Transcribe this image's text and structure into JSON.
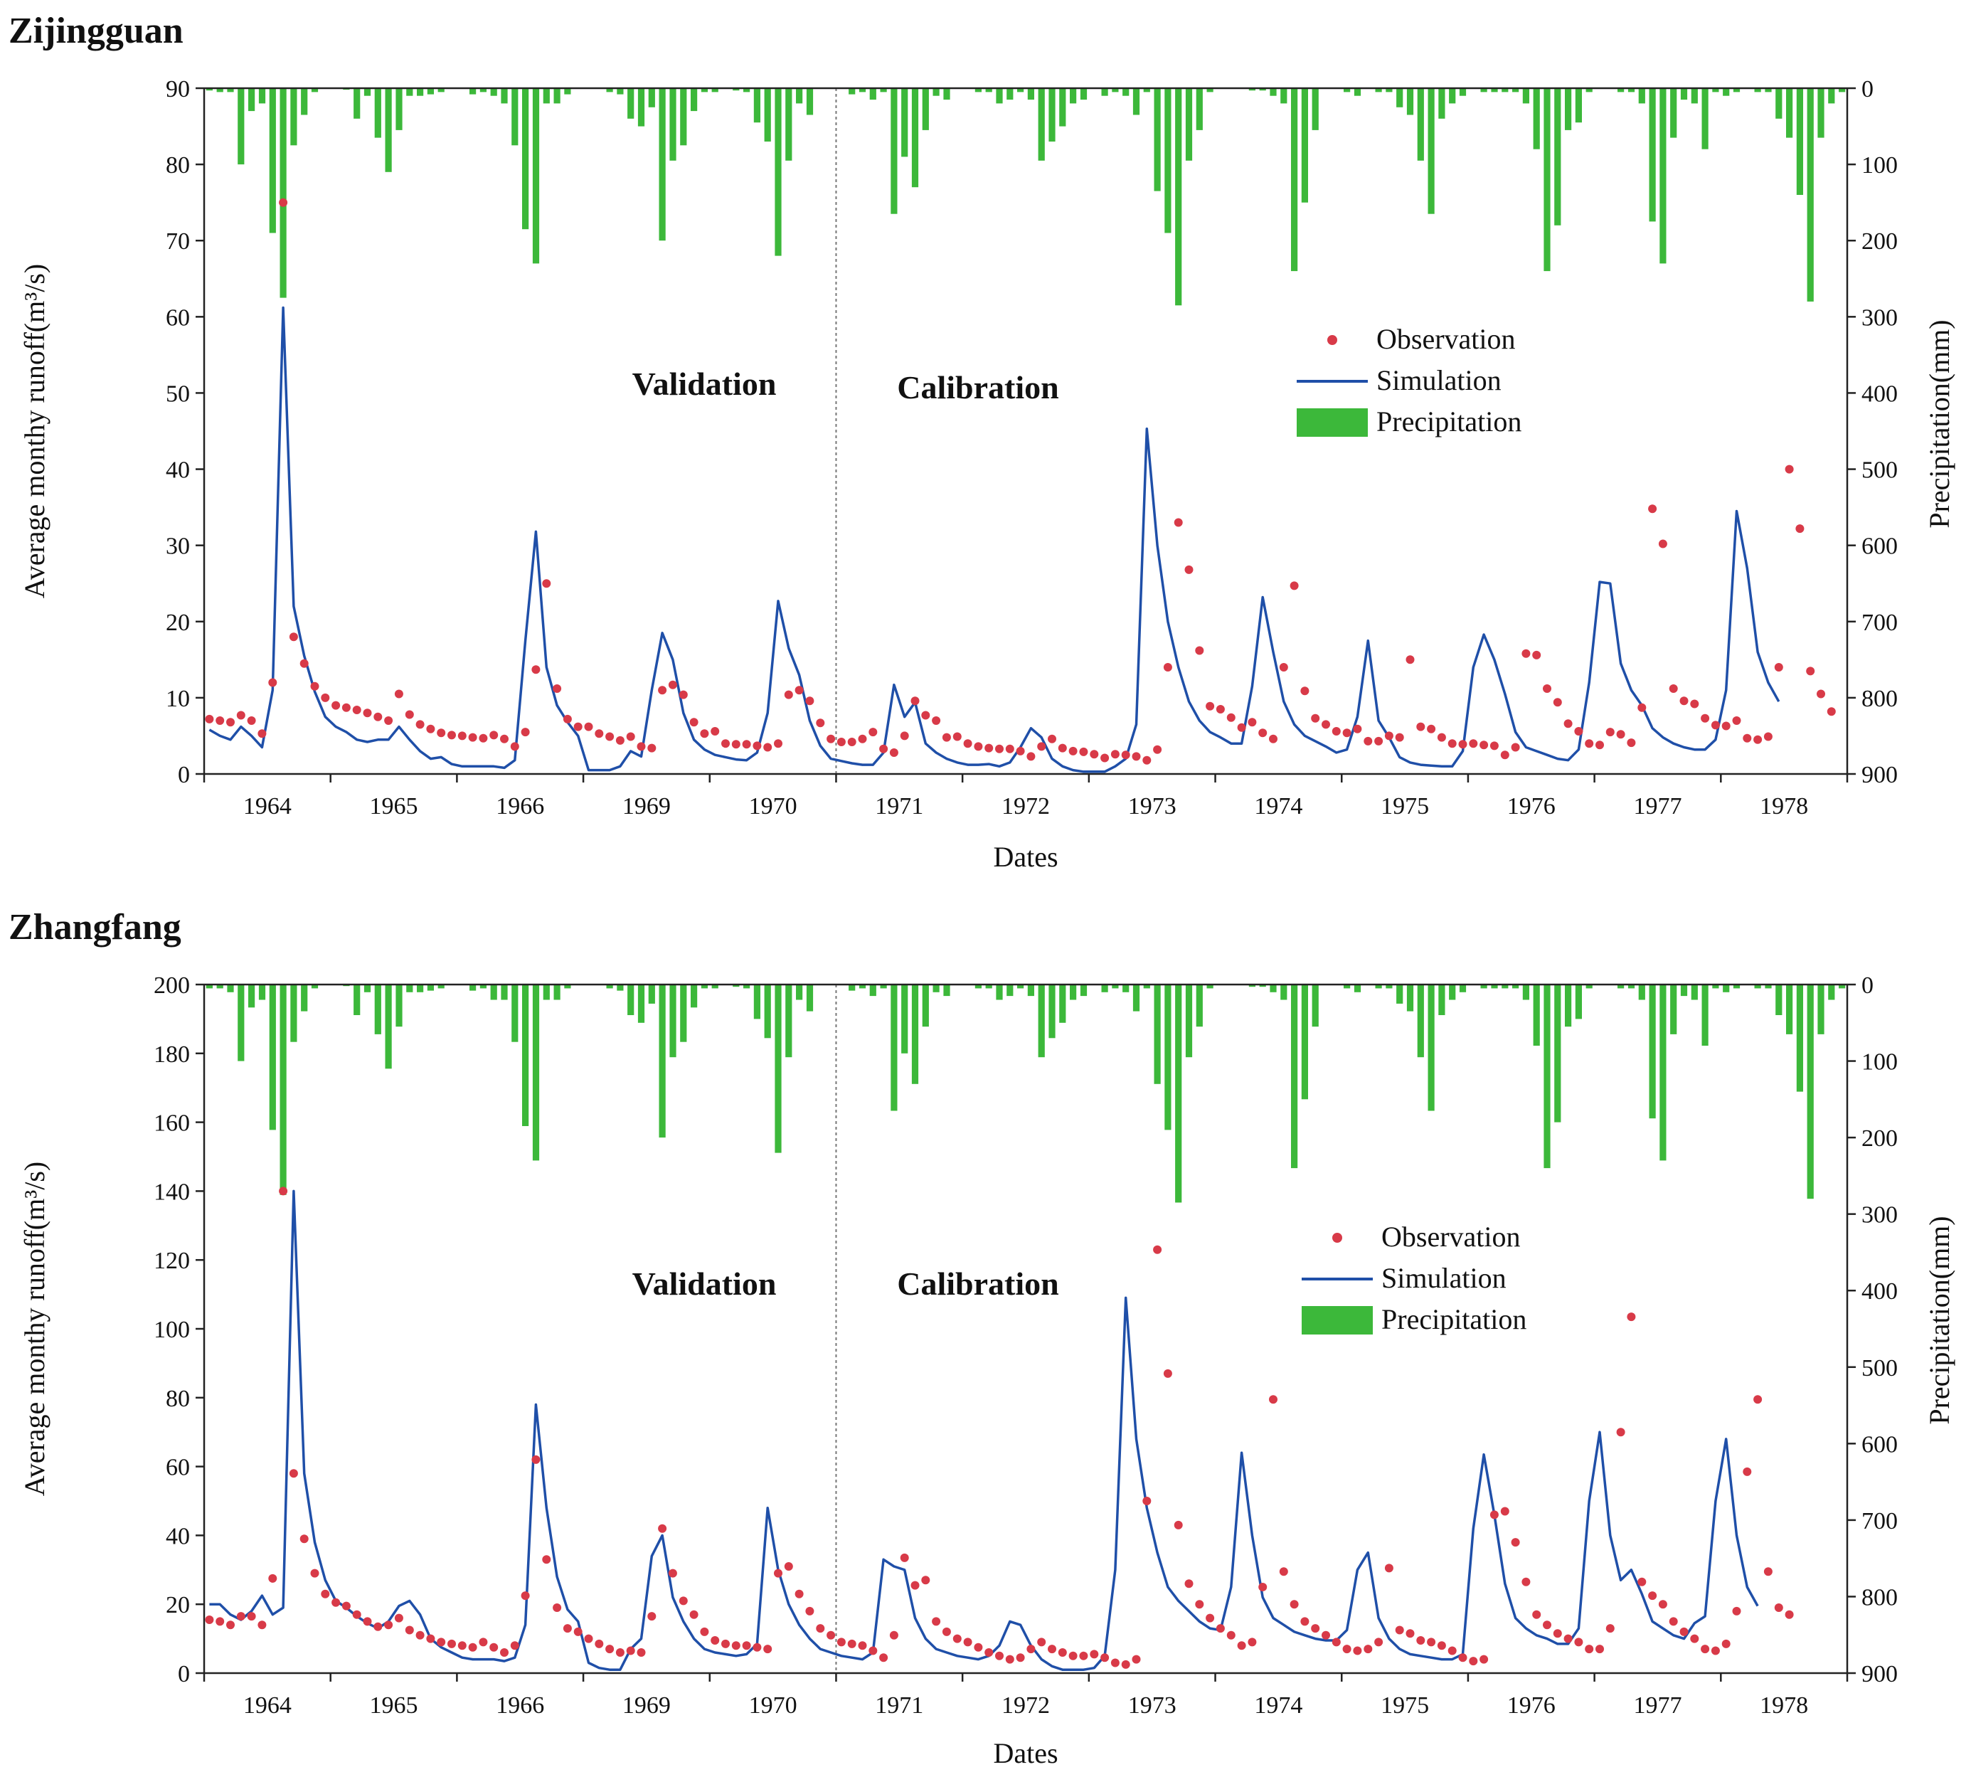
{
  "colors": {
    "observation": "#d83a48",
    "simulation": "#1f4fa8",
    "precipitation": "#3cb83a",
    "axis": "#222222",
    "divider": "#777777"
  },
  "chart_data": [
    {
      "type": "combo",
      "title": "Zijingguan",
      "xlabel": "Dates",
      "ylabel_left": "Average monthy runoff(m³/s)",
      "ylabel_right": "Precipitation(mm)",
      "ylim_left": [
        0,
        90
      ],
      "yticks_left": [
        0,
        10,
        20,
        30,
        40,
        50,
        60,
        70,
        80,
        90
      ],
      "ylim_right_inverted": [
        0,
        900
      ],
      "yticks_right": [
        0,
        100,
        200,
        300,
        400,
        500,
        600,
        700,
        800,
        900
      ],
      "x_tick_labels": [
        "1964",
        "1965",
        "1966",
        "1969",
        "1970",
        "1971",
        "1972",
        "1973",
        "1974",
        "1975",
        "1976",
        "1977",
        "1978"
      ],
      "months_per_year": 12,
      "split_after_year_index": 4,
      "section_labels": {
        "left": "Validation",
        "right": "Calibration"
      },
      "legend": {
        "observation": "Observation",
        "simulation": "Simulation",
        "precipitation": "Precipitation"
      },
      "series": [
        {
          "name": "Observation",
          "type": "scatter",
          "values": [
            7.2,
            7.0,
            6.8,
            7.7,
            7.0,
            5.3,
            12.0,
            75.0,
            18.0,
            14.5,
            11.5,
            10.0,
            9.0,
            8.7,
            8.4,
            8.0,
            7.5,
            7.0,
            10.5,
            7.8,
            6.5,
            5.9,
            5.4,
            5.1,
            5.0,
            4.8,
            4.7,
            5.1,
            4.6,
            3.6,
            5.5,
            13.7,
            25.0,
            11.2,
            7.2,
            6.2,
            6.2,
            5.3,
            4.9,
            4.4,
            4.9,
            3.6,
            3.4,
            11.0,
            11.7,
            10.4,
            6.8,
            5.3,
            5.6,
            4.0,
            3.9,
            3.9,
            3.7,
            3.5,
            4.0,
            10.4,
            11.0,
            9.6,
            6.7,
            4.6,
            4.2,
            4.2,
            4.6,
            5.5,
            3.3,
            2.8,
            5.0,
            9.6,
            7.7,
            7.0,
            4.8,
            4.9,
            4.0,
            3.6,
            3.4,
            3.3,
            3.3,
            3.0,
            2.3,
            3.6,
            4.6,
            3.4,
            3.0,
            2.9,
            2.6,
            2.1,
            2.6,
            2.5,
            2.3,
            1.8,
            3.2,
            14.0,
            33.0,
            26.8,
            16.2,
            8.9,
            8.5,
            7.4,
            6.1,
            6.8,
            5.4,
            4.6,
            14.0,
            24.7,
            10.9,
            7.3,
            6.5,
            5.6,
            5.4,
            5.9,
            4.3,
            4.3,
            5.0,
            4.8,
            15.0,
            6.2,
            5.9,
            4.8,
            4.0,
            3.9,
            4.0,
            3.8,
            3.7,
            2.5,
            3.5,
            15.8,
            15.6,
            11.2,
            9.4,
            6.6,
            5.6,
            4.0,
            3.8,
            5.5,
            5.2,
            4.1,
            8.7,
            34.8,
            30.2,
            11.2,
            9.6,
            9.2,
            7.3,
            6.4,
            6.3,
            7.0,
            4.7,
            4.5,
            4.9,
            14.0,
            40.0,
            32.2,
            13.5,
            10.5,
            8.2
          ]
        },
        {
          "name": "Simulation",
          "type": "line",
          "values": [
            5.8,
            5.0,
            4.5,
            6.2,
            5.0,
            3.5,
            11.0,
            61.2,
            22.0,
            15.5,
            10.8,
            7.5,
            6.2,
            5.5,
            4.5,
            4.2,
            4.5,
            4.5,
            6.2,
            4.5,
            3.0,
            2.0,
            2.2,
            1.3,
            1.0,
            1.0,
            1.0,
            1.0,
            0.8,
            1.8,
            17.5,
            31.8,
            14.0,
            9.0,
            6.8,
            5.0,
            0.5,
            0.5,
            0.5,
            1.0,
            3.0,
            2.3,
            11.0,
            18.5,
            15.0,
            8.0,
            4.5,
            3.2,
            2.5,
            2.2,
            1.9,
            1.8,
            2.8,
            8.0,
            22.7,
            16.5,
            13.0,
            7.0,
            3.7,
            2.0,
            1.7,
            1.4,
            1.2,
            1.2,
            2.8,
            11.7,
            7.5,
            9.4,
            4.0,
            2.8,
            2.0,
            1.5,
            1.2,
            1.2,
            1.3,
            1.0,
            1.5,
            3.5,
            6.0,
            4.8,
            2.0,
            1.0,
            0.5,
            0.3,
            0.3,
            0.3,
            1.0,
            2.0,
            6.5,
            45.3,
            30.0,
            20.0,
            14.0,
            9.5,
            7.0,
            5.5,
            4.8,
            4.0,
            4.0,
            11.5,
            23.2,
            16.0,
            9.5,
            6.5,
            5.0,
            4.3,
            3.6,
            2.8,
            3.2,
            7.5,
            17.5,
            7.0,
            4.8,
            2.2,
            1.5,
            1.2,
            1.1,
            1.0,
            1.0,
            3.0,
            14.0,
            18.3,
            15.0,
            10.5,
            5.5,
            3.5,
            3.0,
            2.5,
            2.0,
            1.8,
            3.2,
            12.0,
            25.2,
            25.0,
            14.5,
            11.0,
            9.0,
            6.0,
            4.8,
            4.0,
            3.5,
            3.2,
            3.2,
            4.5,
            11.0,
            34.5,
            27.0,
            16.0,
            12.0,
            9.5
          ]
        },
        {
          "name": "Precipitation",
          "type": "bar",
          "axis": "right",
          "values": [
            3,
            5,
            5,
            100,
            30,
            20,
            190,
            275,
            75,
            35,
            5,
            0,
            0,
            2,
            40,
            10,
            65,
            110,
            55,
            10,
            10,
            8,
            5,
            0,
            0,
            8,
            5,
            10,
            20,
            75,
            185,
            230,
            20,
            20,
            8,
            0,
            0,
            0,
            5,
            8,
            40,
            50,
            25,
            200,
            95,
            75,
            30,
            5,
            5,
            0,
            3,
            5,
            45,
            70,
            220,
            95,
            20,
            35,
            0,
            0,
            0,
            8,
            5,
            15,
            5,
            165,
            90,
            130,
            55,
            10,
            15,
            0,
            0,
            5,
            5,
            20,
            15,
            5,
            15,
            95,
            70,
            50,
            20,
            15,
            0,
            10,
            5,
            10,
            35,
            5,
            135,
            190,
            285,
            95,
            55,
            5,
            0,
            0,
            0,
            3,
            3,
            10,
            20,
            240,
            150,
            55,
            0,
            0,
            5,
            10,
            0,
            5,
            5,
            25,
            35,
            95,
            165,
            40,
            20,
            10,
            0,
            5,
            5,
            5,
            5,
            20,
            80,
            240,
            180,
            55,
            45,
            5,
            0,
            0,
            5,
            5,
            20,
            175,
            230,
            65,
            15,
            20,
            80,
            5,
            10,
            5,
            0,
            5,
            5,
            40,
            65,
            140,
            280,
            65,
            20,
            5
          ]
        }
      ]
    },
    {
      "type": "combo",
      "title": "Zhangfang",
      "xlabel": "Dates",
      "ylabel_left": "Average monthy runoff(m³/s)",
      "ylabel_right": "Precipitation(mm)",
      "ylim_left": [
        0,
        200
      ],
      "yticks_left": [
        0,
        20,
        40,
        60,
        80,
        100,
        120,
        140,
        160,
        180,
        200
      ],
      "ylim_right_inverted": [
        0,
        900
      ],
      "yticks_right": [
        0,
        100,
        200,
        300,
        400,
        500,
        600,
        700,
        800,
        900
      ],
      "x_tick_labels": [
        "1964",
        "1965",
        "1966",
        "1969",
        "1970",
        "1971",
        "1972",
        "1973",
        "1974",
        "1975",
        "1976",
        "1977",
        "1978"
      ],
      "months_per_year": 12,
      "split_after_year_index": 4,
      "section_labels": {
        "left": "Validation",
        "right": "Calibration"
      },
      "legend": {
        "observation": "Observation",
        "simulation": "Simulation",
        "precipitation": "Precipitation"
      },
      "series": [
        {
          "name": "Observation",
          "type": "scatter",
          "values": [
            15.5,
            15.0,
            14.0,
            16.5,
            16.5,
            14.0,
            27.5,
            140.0,
            58.0,
            39.0,
            29.0,
            23.0,
            20.5,
            19.5,
            17.0,
            15.0,
            13.5,
            14.0,
            16.0,
            12.5,
            11.0,
            10.0,
            9.0,
            8.5,
            8.0,
            7.5,
            9.0,
            7.5,
            6.0,
            8.0,
            22.5,
            62.0,
            33.0,
            19.0,
            13.0,
            12.0,
            10.0,
            8.5,
            7.0,
            6.0,
            6.5,
            6.0,
            16.5,
            42.0,
            29.0,
            21.0,
            17.0,
            12.0,
            9.5,
            8.5,
            8.0,
            8.0,
            7.5,
            7.0,
            29.0,
            31.0,
            23.0,
            18.0,
            13.0,
            11.0,
            9.0,
            8.5,
            8.0,
            6.5,
            4.5,
            11.0,
            33.5,
            25.5,
            27.0,
            15.0,
            12.0,
            10.0,
            9.0,
            7.5,
            6.0,
            5.0,
            4.0,
            4.5,
            7.0,
            9.0,
            7.0,
            6.0,
            5.0,
            5.0,
            5.5,
            4.5,
            3.0,
            2.5,
            4.0,
            50.0,
            123.0,
            87.0,
            43.0,
            26.0,
            20.0,
            16.0,
            13.0,
            11.0,
            8.0,
            9.0,
            25.0,
            79.5,
            29.5,
            20.0,
            15.0,
            13.0,
            11.0,
            9.0,
            7.0,
            6.5,
            7.0,
            9.0,
            30.5,
            12.5,
            11.5,
            9.5,
            9.0,
            8.0,
            6.5,
            4.5,
            3.5,
            4.0,
            46.0,
            47.0,
            38.0,
            26.5,
            17.0,
            14.0,
            11.5,
            10.0,
            9.0,
            7.0,
            7.0,
            13.0,
            70.0,
            103.5,
            26.5,
            22.5,
            20.0,
            15.0,
            12.0,
            10.0,
            7.0,
            6.5,
            8.5,
            18.0,
            58.5,
            79.5,
            29.5,
            19.0,
            17.0
          ]
        },
        {
          "name": "Simulation",
          "type": "line",
          "values": [
            20.0,
            20.0,
            17.0,
            15.5,
            18.0,
            22.5,
            17.0,
            19.0,
            140.0,
            58.0,
            38.0,
            27.0,
            21.0,
            19.0,
            16.5,
            14.5,
            13.0,
            15.0,
            19.5,
            21.0,
            17.0,
            10.0,
            7.5,
            6.0,
            4.5,
            4.0,
            4.0,
            4.0,
            3.5,
            4.5,
            14.0,
            78.0,
            48.0,
            28.0,
            18.5,
            15.0,
            3.0,
            1.5,
            1.0,
            1.0,
            7.0,
            10.0,
            34.0,
            40.0,
            22.0,
            15.0,
            10.0,
            7.0,
            6.0,
            5.5,
            5.0,
            5.5,
            8.5,
            48.0,
            30.0,
            20.0,
            14.0,
            10.0,
            7.0,
            6.0,
            5.0,
            4.5,
            4.0,
            6.0,
            33.0,
            31.0,
            30.0,
            16.0,
            10.0,
            7.0,
            6.0,
            5.0,
            4.5,
            4.0,
            5.0,
            8.0,
            15.0,
            14.0,
            8.0,
            4.0,
            2.0,
            1.0,
            1.0,
            1.0,
            1.5,
            5.0,
            30.0,
            109.0,
            68.0,
            48.0,
            35.0,
            25.0,
            21.0,
            18.0,
            15.0,
            13.0,
            12.5,
            25.0,
            64.0,
            40.0,
            22.0,
            16.0,
            14.0,
            12.0,
            11.0,
            10.0,
            9.5,
            9.5,
            12.5,
            30.0,
            35.0,
            16.0,
            10.0,
            7.0,
            5.5,
            5.0,
            4.5,
            4.0,
            4.0,
            5.5,
            42.0,
            63.5,
            46.0,
            26.0,
            16.0,
            13.0,
            11.0,
            10.0,
            8.5,
            8.5,
            13.0,
            50.0,
            70.0,
            40.0,
            27.0,
            30.0,
            23.0,
            15.0,
            13.0,
            11.0,
            10.0,
            14.5,
            16.5,
            50.0,
            68.0,
            40.0,
            25.0,
            19.5
          ]
        },
        {
          "name": "Precipitation",
          "type": "bar",
          "axis": "right",
          "values": [
            5,
            5,
            10,
            100,
            30,
            20,
            190,
            275,
            75,
            35,
            5,
            0,
            0,
            2,
            40,
            10,
            65,
            110,
            55,
            10,
            10,
            8,
            5,
            0,
            0,
            8,
            5,
            20,
            20,
            75,
            185,
            230,
            20,
            20,
            5,
            0,
            0,
            0,
            5,
            8,
            40,
            50,
            25,
            200,
            95,
            75,
            30,
            5,
            5,
            0,
            3,
            5,
            45,
            70,
            220,
            95,
            20,
            35,
            0,
            0,
            0,
            8,
            5,
            15,
            5,
            165,
            90,
            130,
            55,
            10,
            15,
            0,
            0,
            5,
            5,
            20,
            15,
            5,
            15,
            95,
            70,
            50,
            20,
            15,
            0,
            10,
            5,
            10,
            35,
            5,
            130,
            190,
            285,
            95,
            55,
            5,
            0,
            0,
            0,
            3,
            3,
            10,
            20,
            240,
            150,
            55,
            0,
            0,
            5,
            10,
            0,
            5,
            5,
            25,
            35,
            95,
            165,
            40,
            20,
            10,
            0,
            5,
            5,
            5,
            5,
            20,
            80,
            240,
            180,
            55,
            45,
            5,
            0,
            0,
            5,
            5,
            20,
            175,
            230,
            65,
            15,
            20,
            80,
            5,
            10,
            5,
            0,
            5,
            5,
            40,
            65,
            140,
            280,
            65,
            20,
            5
          ]
        }
      ]
    }
  ]
}
